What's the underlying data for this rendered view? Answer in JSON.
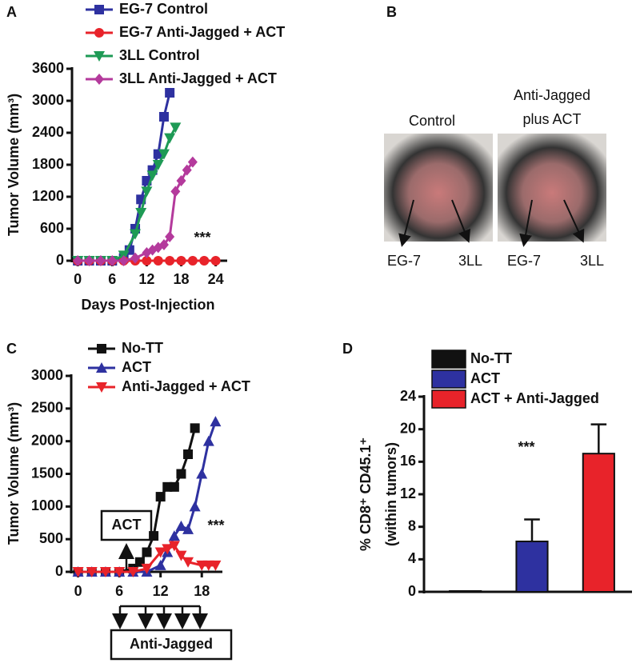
{
  "chart_data": [
    {
      "type": "line",
      "panel": "A",
      "xlabel": "Days Post-Injection",
      "ylabel": "Tumor Volume (mm³)",
      "xlim": [
        -1,
        26
      ],
      "xticks": [
        0,
        6,
        12,
        18,
        24
      ],
      "ylim": [
        0,
        3600
      ],
      "yticks": [
        0,
        600,
        1200,
        1800,
        2400,
        3000,
        3600
      ],
      "annotations": [
        "***"
      ],
      "series": [
        {
          "name": "EG-7 Control",
          "color": "#2e31a0",
          "marker": "square",
          "x": [
            0,
            2,
            4,
            6,
            8,
            9,
            10,
            11,
            12,
            13,
            14,
            15,
            16
          ],
          "values": [
            0,
            0,
            0,
            0,
            50,
            200,
            600,
            1150,
            1500,
            1700,
            2000,
            2700,
            3150
          ]
        },
        {
          "name": "EG-7 Anti-Jagged + ACT",
          "color": "#e8232a",
          "marker": "circle",
          "x": [
            0,
            2,
            4,
            6,
            8,
            10,
            12,
            14,
            16,
            18,
            20,
            22,
            24
          ],
          "values": [
            0,
            0,
            0,
            0,
            0,
            0,
            0,
            0,
            0,
            0,
            0,
            0,
            0
          ]
        },
        {
          "name": "3LL Control",
          "color": "#1e9a55",
          "marker": "tri-down",
          "x": [
            0,
            2,
            4,
            6,
            8,
            10,
            11,
            12,
            13,
            14,
            15,
            16,
            17
          ],
          "values": [
            0,
            0,
            0,
            0,
            100,
            500,
            900,
            1300,
            1600,
            1800,
            2000,
            2300,
            2500
          ]
        },
        {
          "name": "3LL Anti-Jagged + ACT",
          "color": "#b43a9c",
          "marker": "diamond",
          "x": [
            0,
            2,
            4,
            6,
            8,
            10,
            12,
            13,
            14,
            15,
            16,
            17,
            18,
            19,
            20
          ],
          "values": [
            0,
            0,
            0,
            0,
            0,
            50,
            150,
            200,
            250,
            300,
            450,
            1300,
            1500,
            1700,
            1850
          ]
        }
      ]
    },
    {
      "type": "line",
      "panel": "C",
      "ylabel": "Tumor Volume (mm³)",
      "xlim": [
        -1,
        21
      ],
      "xticks": [
        0,
        6,
        12,
        18
      ],
      "ylim": [
        0,
        3000
      ],
      "yticks": [
        0,
        500,
        1000,
        1500,
        2000,
        2500,
        3000
      ],
      "annotations": [
        "***",
        "ACT",
        "Anti-Jagged"
      ],
      "series": [
        {
          "name": "No-TT",
          "color": "#111111",
          "marker": "square",
          "x": [
            0,
            2,
            4,
            6,
            8,
            9,
            10,
            11,
            12,
            13,
            14,
            15,
            16,
            17
          ],
          "values": [
            0,
            0,
            0,
            0,
            50,
            150,
            300,
            550,
            1150,
            1300,
            1300,
            1500,
            1800,
            2200
          ]
        },
        {
          "name": "ACT",
          "color": "#2e31a0",
          "marker": "tri-up",
          "x": [
            0,
            2,
            4,
            6,
            8,
            10,
            12,
            13,
            14,
            15,
            16,
            17,
            18,
            19,
            20
          ],
          "values": [
            0,
            0,
            0,
            0,
            0,
            0,
            100,
            300,
            550,
            700,
            650,
            1000,
            1500,
            2000,
            2300
          ]
        },
        {
          "name": "Anti-Jagged + ACT",
          "color": "#e8232a",
          "marker": "tri-down",
          "x": [
            0,
            2,
            4,
            6,
            8,
            10,
            12,
            13,
            14,
            15,
            16,
            18,
            19,
            20
          ],
          "values": [
            0,
            0,
            0,
            0,
            0,
            50,
            300,
            350,
            400,
            250,
            150,
            100,
            100,
            100
          ]
        }
      ]
    },
    {
      "type": "bar",
      "panel": "D",
      "ylabel": [
        "% CD8⁺ CD45.1⁺",
        "(within tumors)"
      ],
      "categories": [
        "No-TT",
        "ACT",
        "ACT + Anti-Jagged"
      ],
      "values": [
        0.1,
        6.2,
        17
      ],
      "errors": [
        0,
        2.7,
        3.6
      ],
      "colors": [
        "#111111",
        "#2e31a0",
        "#e8232a"
      ],
      "ylim": [
        0,
        24
      ],
      "yticks": [
        0,
        4,
        8,
        12,
        16,
        20,
        24
      ],
      "annotations": [
        "***"
      ]
    }
  ],
  "photo_panel": {
    "panel": "B",
    "left_title": "Control",
    "right_title": [
      "Anti-Jagged",
      "plus ACT"
    ],
    "left_labels": [
      "EG-7",
      "3LL"
    ],
    "right_labels": [
      "EG-7",
      "3LL"
    ]
  }
}
